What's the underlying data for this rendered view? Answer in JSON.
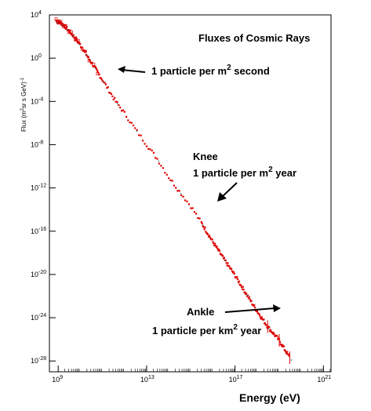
{
  "chart_data": {
    "type": "scatter",
    "title": "Fluxes of Cosmic Rays",
    "xlabel": "Energy (eV)",
    "ylabel_parts": [
      "Flux (m",
      "2",
      "sr s GeV)",
      "-1"
    ],
    "x_scale": "log",
    "y_scale": "log",
    "xlim": [
      400000000.0,
      2.2e+21
    ],
    "ylim": [
      1e-29,
      10000.0
    ],
    "x_ticks": [
      {
        "value": 1000000000.0,
        "base": "10",
        "exp": "9"
      },
      {
        "value": 10000000000000.0,
        "base": "10",
        "exp": "13"
      },
      {
        "value": 1e+17,
        "base": "10",
        "exp": "17"
      },
      {
        "value": 1e+21,
        "base": "10",
        "exp": "21"
      }
    ],
    "y_ticks": [
      {
        "value": 10000.0,
        "base": "10",
        "exp": "4"
      },
      {
        "value": 1.0,
        "base": "10",
        "exp": "0"
      },
      {
        "value": 0.0001,
        "base": "10",
        "exp": "-4"
      },
      {
        "value": 1e-08,
        "base": "10",
        "exp": "-8"
      },
      {
        "value": 1e-12,
        "base": "10",
        "exp": "-12"
      },
      {
        "value": 1e-16,
        "base": "10",
        "exp": "-16"
      },
      {
        "value": 1e-20,
        "base": "10",
        "exp": "-20"
      },
      {
        "value": 1e-24,
        "base": "10",
        "exp": "-24"
      },
      {
        "value": 1e-28,
        "base": "10",
        "exp": "-28"
      }
    ],
    "grid": false,
    "series": [
      {
        "color": "#dd0000",
        "points": [
          [
            800000000.0,
            3000
          ],
          [
            1000000000.0,
            2500
          ],
          [
            1300000000.0,
            1800
          ],
          [
            1700000000.0,
            1200
          ],
          [
            2200000000.0,
            700
          ],
          [
            3000000000.0,
            350
          ],
          [
            4000000000.0,
            180
          ],
          [
            6000000000.0,
            70
          ],
          [
            8000000000.0,
            30
          ],
          [
            12000000000.0,
            10
          ],
          [
            17000000000.0,
            3
          ],
          [
            25000000000.0,
            0.8
          ],
          [
            40000000000.0,
            0.2
          ],
          [
            60000000000.0,
            0.05
          ],
          [
            100000000000.0,
            0.01
          ],
          [
            200000000000.0,
            0.001
          ],
          [
            400000000000.0,
            0.0001
          ],
          [
            1000000000000.0,
            8e-06
          ],
          [
            3000000000000.0,
            3e-07
          ],
          [
            10000000000000.0,
            1e-08
          ],
          [
            30000000000000.0,
            5e-10
          ],
          [
            100000000000000.0,
            1e-11
          ],
          [
            300000000000000.0,
            5e-13
          ],
          [
            1000000000000000.0,
            2e-14
          ],
          [
            3000000000000000.0,
            6e-16
          ],
          [
            1e+16,
            1e-17
          ],
          [
            3e+16,
            3e-19
          ],
          [
            1e+17,
            8e-21
          ],
          [
            3e+17,
            2e-22
          ],
          [
            1e+18,
            4e-24
          ],
          [
            3e+18,
            1.5e-25
          ],
          [
            1e+19,
            8e-27
          ],
          [
            3e+19,
            2e-28
          ]
        ]
      }
    ],
    "annotations": [
      {
        "id": "one-per-second",
        "parts": [
          "1 particle per m",
          "2",
          " second"
        ],
        "arrow": "left"
      },
      {
        "id": "knee",
        "heading": "Knee",
        "parts": [
          "1 particle per m",
          "2",
          " year"
        ],
        "arrow": "down-left"
      },
      {
        "id": "ankle",
        "heading": "Ankle",
        "parts": [
          "1 particle per km",
          "2",
          " year"
        ],
        "arrow": "right"
      }
    ]
  }
}
